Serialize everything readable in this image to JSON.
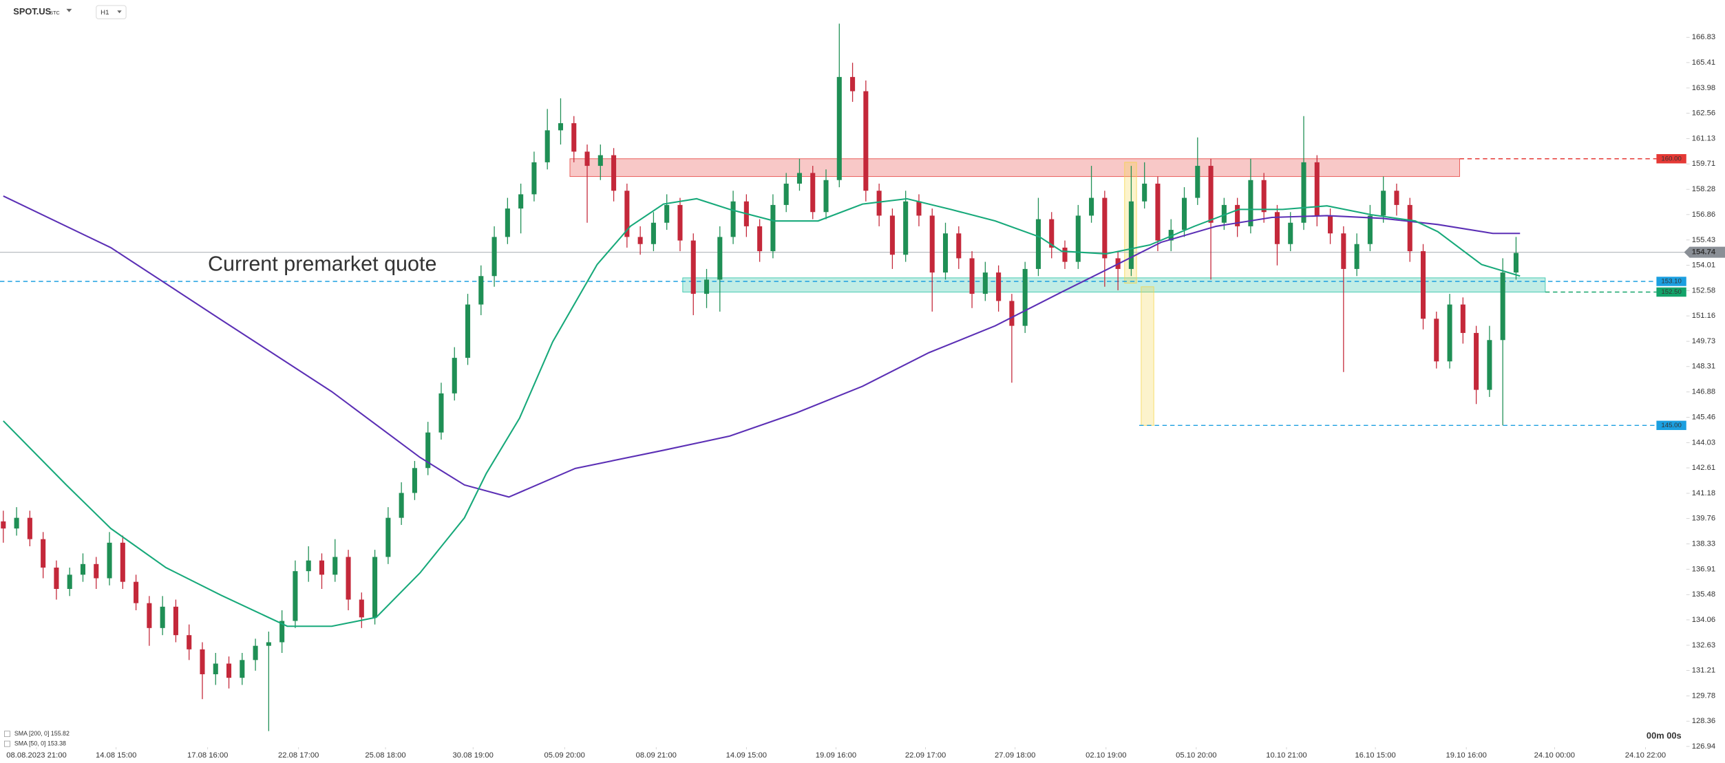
{
  "chart_data": {
    "type": "candlestick",
    "symbol": "SPOT.US",
    "symbol_suffix": "STC",
    "interval": "H1",
    "up_color": "#1f8f55",
    "down_color": "#c4283a",
    "grid": false,
    "xlim": [
      -0.25,
      126.83
    ],
    "ylim": [
      126.9,
      168.93
    ],
    "yticks": [
      166.83,
      165.41,
      163.98,
      162.56,
      161.13,
      159.71,
      158.28,
      156.86,
      155.43,
      154.01,
      152.58,
      151.16,
      149.73,
      148.31,
      146.88,
      145.46,
      144.03,
      142.61,
      141.18,
      139.76,
      138.33,
      136.91,
      135.48,
      134.06,
      132.63,
      131.21,
      129.78,
      128.36,
      126.94
    ],
    "xticks": [
      {
        "value": 2.5,
        "label": "08.08.2023 21:00"
      },
      {
        "value": 8.5,
        "label": "14.08 15:00"
      },
      {
        "value": 15.4,
        "label": "17.08 16:00"
      },
      {
        "value": 22.25,
        "label": "22.08 17:00"
      },
      {
        "value": 28.8,
        "label": "25.08 18:00"
      },
      {
        "value": 35.4,
        "label": "30.08 19:00"
      },
      {
        "value": 42.3,
        "label": "05.09 20:00"
      },
      {
        "value": 49.2,
        "label": "08.09 21:00"
      },
      {
        "value": 56,
        "label": "14.09 15:00"
      },
      {
        "value": 62.75,
        "label": "19.09 16:00"
      },
      {
        "value": 69.5,
        "label": "22.09 17:00"
      },
      {
        "value": 76.25,
        "label": "27.09 18:00"
      },
      {
        "value": 83.1,
        "label": "02.10 19:00"
      },
      {
        "value": 89.9,
        "label": "05.10 20:00"
      },
      {
        "value": 96.7,
        "label": "10.10 21:00"
      },
      {
        "value": 103.4,
        "label": "16.10 15:00"
      },
      {
        "value": 110.25,
        "label": "19.10 16:00"
      },
      {
        "value": 116.9,
        "label": "24.10 00:00"
      },
      {
        "value": 123.75,
        "label": "24.10 22:00"
      }
    ],
    "ohlc": [
      [
        139.6,
        140.2,
        138.4,
        139.2
      ],
      [
        139.2,
        140.4,
        138.8,
        139.8
      ],
      [
        139.8,
        140.2,
        138.2,
        138.6
      ],
      [
        138.6,
        139.0,
        136.4,
        137.0
      ],
      [
        137.0,
        137.4,
        135.2,
        135.8
      ],
      [
        135.8,
        137.0,
        135.4,
        136.6
      ],
      [
        136.6,
        137.8,
        136.2,
        137.2
      ],
      [
        137.2,
        137.6,
        135.8,
        136.4
      ],
      [
        136.4,
        139.0,
        136.0,
        138.4
      ],
      [
        138.4,
        138.8,
        135.8,
        136.2
      ],
      [
        136.2,
        136.6,
        134.6,
        135.0
      ],
      [
        135.0,
        135.4,
        132.6,
        133.6
      ],
      [
        133.6,
        135.4,
        133.2,
        134.8
      ],
      [
        134.8,
        135.2,
        132.8,
        133.2
      ],
      [
        133.2,
        133.8,
        131.8,
        132.4
      ],
      [
        132.4,
        132.8,
        129.6,
        131.0
      ],
      [
        131.0,
        132.2,
        130.4,
        131.6
      ],
      [
        131.6,
        132.0,
        130.2,
        130.8
      ],
      [
        130.8,
        132.2,
        130.4,
        131.8
      ],
      [
        131.8,
        133.0,
        131.2,
        132.6
      ],
      [
        132.6,
        133.4,
        127.8,
        132.8
      ],
      [
        132.8,
        134.6,
        132.2,
        134.0
      ],
      [
        134.0,
        137.4,
        133.6,
        136.8
      ],
      [
        136.8,
        138.2,
        136.2,
        137.4
      ],
      [
        137.4,
        137.8,
        135.8,
        136.6
      ],
      [
        136.6,
        138.6,
        136.2,
        137.6
      ],
      [
        137.6,
        138.0,
        134.6,
        135.2
      ],
      [
        135.2,
        135.6,
        133.6,
        134.2
      ],
      [
        134.2,
        138.0,
        133.8,
        137.6
      ],
      [
        137.6,
        140.4,
        137.2,
        139.8
      ],
      [
        139.8,
        141.8,
        139.4,
        141.2
      ],
      [
        141.2,
        143.0,
        140.8,
        142.6
      ],
      [
        142.6,
        145.2,
        142.2,
        144.6
      ],
      [
        144.6,
        147.4,
        144.2,
        146.8
      ],
      [
        146.8,
        149.4,
        146.4,
        148.8
      ],
      [
        148.8,
        152.4,
        148.4,
        151.8
      ],
      [
        151.8,
        154.0,
        151.2,
        153.4
      ],
      [
        153.4,
        156.2,
        152.8,
        155.6
      ],
      [
        155.6,
        157.8,
        155.2,
        157.2
      ],
      [
        157.2,
        158.6,
        155.8,
        158.0
      ],
      [
        158.0,
        160.4,
        157.6,
        159.8
      ],
      [
        159.8,
        162.8,
        159.4,
        161.6
      ],
      [
        161.6,
        163.4,
        160.8,
        162.0
      ],
      [
        162.0,
        162.4,
        159.8,
        160.4
      ],
      [
        160.4,
        160.8,
        156.4,
        159.6
      ],
      [
        159.6,
        160.8,
        158.8,
        160.2
      ],
      [
        160.2,
        160.6,
        157.6,
        158.2
      ],
      [
        158.2,
        158.6,
        155.0,
        155.6
      ],
      [
        155.6,
        156.2,
        154.6,
        155.2
      ],
      [
        155.2,
        157.0,
        154.8,
        156.4
      ],
      [
        156.4,
        158.0,
        156.0,
        157.4
      ],
      [
        157.4,
        157.8,
        154.8,
        155.4
      ],
      [
        155.4,
        155.8,
        151.2,
        152.4
      ],
      [
        152.4,
        153.8,
        151.6,
        153.2
      ],
      [
        153.2,
        156.2,
        151.4,
        155.6
      ],
      [
        155.6,
        158.2,
        155.2,
        157.6
      ],
      [
        157.6,
        158.0,
        155.6,
        156.2
      ],
      [
        156.2,
        156.6,
        154.2,
        154.8
      ],
      [
        154.8,
        158.0,
        154.4,
        157.4
      ],
      [
        157.4,
        159.2,
        157.0,
        158.6
      ],
      [
        158.6,
        160.0,
        158.2,
        159.2
      ],
      [
        159.2,
        159.6,
        156.6,
        157.0
      ],
      [
        157.0,
        159.4,
        156.6,
        158.8
      ],
      [
        158.8,
        167.6,
        158.4,
        164.6
      ],
      [
        164.6,
        165.4,
        163.2,
        163.8
      ],
      [
        163.8,
        164.4,
        157.6,
        158.2
      ],
      [
        158.2,
        158.6,
        156.2,
        156.8
      ],
      [
        156.8,
        157.2,
        153.8,
        154.6
      ],
      [
        154.6,
        158.2,
        154.2,
        157.6
      ],
      [
        157.6,
        158.0,
        156.2,
        156.8
      ],
      [
        156.8,
        157.2,
        151.4,
        153.6
      ],
      [
        153.6,
        156.4,
        153.2,
        155.8
      ],
      [
        155.8,
        156.2,
        153.8,
        154.4
      ],
      [
        154.4,
        154.8,
        151.6,
        152.4
      ],
      [
        152.4,
        154.2,
        152.0,
        153.6
      ],
      [
        153.6,
        154.0,
        151.4,
        152.0
      ],
      [
        152.0,
        152.4,
        147.4,
        150.6
      ],
      [
        150.6,
        154.2,
        150.2,
        153.8
      ],
      [
        153.8,
        157.8,
        153.4,
        156.6
      ],
      [
        156.6,
        157.0,
        154.4,
        155.0
      ],
      [
        155.0,
        155.4,
        153.8,
        154.2
      ],
      [
        154.2,
        157.4,
        153.8,
        156.8
      ],
      [
        156.8,
        159.6,
        156.4,
        157.8
      ],
      [
        157.8,
        158.2,
        152.8,
        154.4
      ],
      [
        154.4,
        154.8,
        152.6,
        153.8
      ],
      [
        153.8,
        159.6,
        153.4,
        157.6
      ],
      [
        157.6,
        159.8,
        157.2,
        158.6
      ],
      [
        158.6,
        159.0,
        154.8,
        155.4
      ],
      [
        155.4,
        156.6,
        154.8,
        156.0
      ],
      [
        156.0,
        158.4,
        155.6,
        157.8
      ],
      [
        157.8,
        161.2,
        157.4,
        159.6
      ],
      [
        159.6,
        160.0,
        153.2,
        156.4
      ],
      [
        156.4,
        157.8,
        156.0,
        157.4
      ],
      [
        157.4,
        157.8,
        155.6,
        156.2
      ],
      [
        156.2,
        160.0,
        155.8,
        158.8
      ],
      [
        158.8,
        159.2,
        156.4,
        157.0
      ],
      [
        157.0,
        157.4,
        154.0,
        155.2
      ],
      [
        155.2,
        157.0,
        154.8,
        156.4
      ],
      [
        156.4,
        162.4,
        156.0,
        159.8
      ],
      [
        159.8,
        160.2,
        156.2,
        156.8
      ],
      [
        156.8,
        157.2,
        155.2,
        155.8
      ],
      [
        155.8,
        156.2,
        148.0,
        153.8
      ],
      [
        153.8,
        155.8,
        153.4,
        155.2
      ],
      [
        155.2,
        157.4,
        154.8,
        156.8
      ],
      [
        156.8,
        159.0,
        156.4,
        158.2
      ],
      [
        158.2,
        158.6,
        156.8,
        157.4
      ],
      [
        157.4,
        157.8,
        154.2,
        154.8
      ],
      [
        154.8,
        155.2,
        150.4,
        151.0
      ],
      [
        151.0,
        151.4,
        148.2,
        148.6
      ],
      [
        148.6,
        152.4,
        148.2,
        151.8
      ],
      [
        151.8,
        152.2,
        149.6,
        150.2
      ],
      [
        150.2,
        150.6,
        146.2,
        147.0
      ],
      [
        147.0,
        150.6,
        146.6,
        149.8
      ],
      [
        149.8,
        154.4,
        145.0,
        153.6
      ],
      [
        153.6,
        155.6,
        153.2,
        154.7
      ]
    ],
    "series": [
      {
        "name": "SMA [200, 0] 155.82",
        "color": "#5b2fb5",
        "x": [
          0,
          8.1,
          16.4,
          24.75,
          31.4,
          34.75,
          38.1,
          43.1,
          49.75,
          54.75,
          59.75,
          64.75,
          69.75,
          74.75,
          79.75,
          83.1,
          87.25,
          91.4,
          95.6,
          99.75,
          103.9,
          108.1,
          112.25,
          114.3
        ],
        "values": [
          157.9,
          155.0,
          150.95,
          146.9,
          143.2,
          141.65,
          140.97,
          142.58,
          143.6,
          144.4,
          145.7,
          147.2,
          149.09,
          150.6,
          152.5,
          153.74,
          155.3,
          156.2,
          156.7,
          156.8,
          156.65,
          156.3,
          155.8,
          155.8
        ]
      },
      {
        "name": "SMA [50, 0] 153.38",
        "color": "#17a97a",
        "x": [
          0,
          4.75,
          8.1,
          12.25,
          16.4,
          21.4,
          24.75,
          28.1,
          31.4,
          34.75,
          36.4,
          38.9,
          41.4,
          44.75,
          47.25,
          49.75,
          52.25,
          54.75,
          58.1,
          61.4,
          64.75,
          68.1,
          71.4,
          74.75,
          78.1,
          79.75,
          83.1,
          86.4,
          89.75,
          93.1,
          96.4,
          99.75,
          103.1,
          106.4,
          108.1,
          111.4,
          114.3
        ],
        "values": [
          145.25,
          141.65,
          139.2,
          137.0,
          135.45,
          133.7,
          133.7,
          134.2,
          136.7,
          139.8,
          142.3,
          145.4,
          149.7,
          154.05,
          156.2,
          157.45,
          157.75,
          157.15,
          156.5,
          156.5,
          157.45,
          157.75,
          157.15,
          156.5,
          155.6,
          154.8,
          154.65,
          155.15,
          156.2,
          157.15,
          157.15,
          157.35,
          156.85,
          156.5,
          155.9,
          154.05,
          153.4
        ]
      }
    ],
    "zones": [
      {
        "x": [
          42.7,
          109.75
        ],
        "y": [
          159.0,
          160.0
        ],
        "color": "#e53935"
      },
      {
        "x": [
          51.2,
          116.2
        ],
        "y": [
          152.5,
          153.3
        ],
        "color": "#1fbfa0"
      },
      {
        "x": [
          84.5,
          85.4
        ],
        "y": [
          153.0,
          159.8
        ],
        "color": "#f5d547"
      },
      {
        "x": [
          85.75,
          86.7
        ],
        "y": [
          145.0,
          152.8
        ],
        "color": "#f5d547"
      }
    ],
    "levels": [
      {
        "value": 160,
        "label": "160.00",
        "color": "#e53935",
        "from": 109.75
      },
      {
        "value": 153.1,
        "label": "153.10",
        "color": "#1b9fe0",
        "from": -0.25
      },
      {
        "value": 152.5,
        "label": "152.50",
        "color": "#13a46a",
        "from": 116.2
      },
      {
        "value": 145,
        "label": "145.00",
        "color": "#1b9fe0",
        "from": 85.6
      }
    ],
    "last_price": {
      "value": 154.74,
      "label": "154.74",
      "color": "#8a8f96"
    },
    "annotation": "Current premarket quote",
    "timer": "00m 00s"
  }
}
